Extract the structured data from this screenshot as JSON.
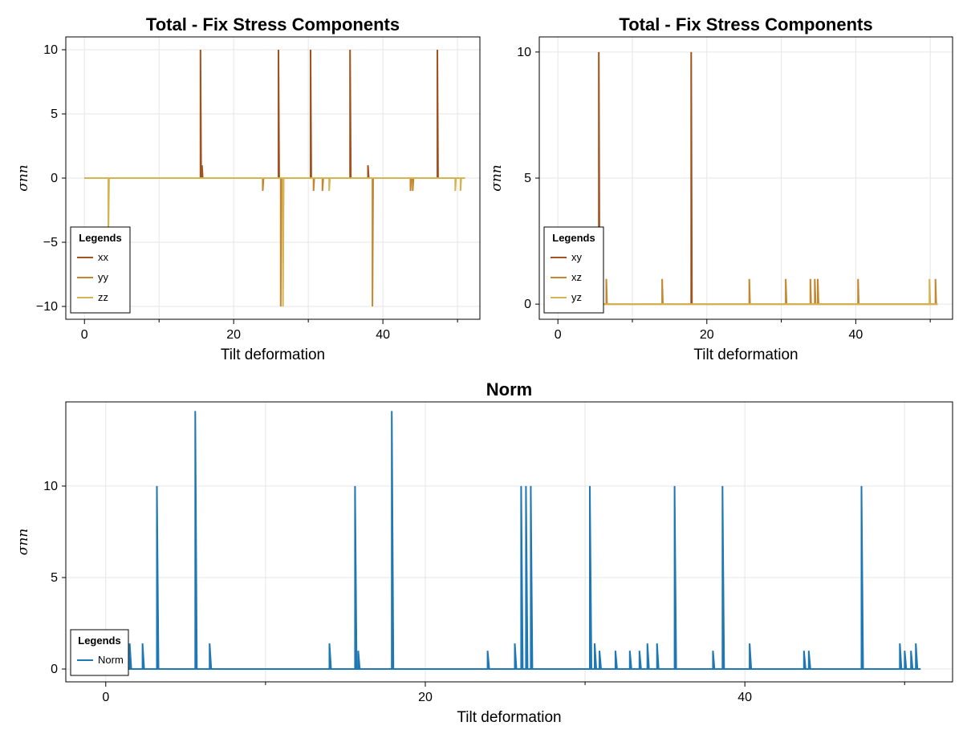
{
  "chart_data": [
    {
      "type": "line",
      "title": "Total - Fix Stress Components",
      "xlabel": "Tilt deformation",
      "ylabel": "σnn",
      "xlim": [
        -2.5,
        53
      ],
      "ylim": [
        -11,
        11
      ],
      "xticks": [
        0,
        20,
        40
      ],
      "xticklabels": [
        "0",
        "20",
        "40"
      ],
      "yticks": [
        -10,
        -5,
        0,
        5,
        10
      ],
      "yticklabels": [
        "−10",
        "−5",
        "0",
        "5",
        "10"
      ],
      "grid": true,
      "legend": {
        "title": "Legends",
        "position": "bottom-left",
        "entries": [
          "xx",
          "yy",
          "zz"
        ]
      },
      "series": [
        {
          "name": "xx",
          "color": "#a0531f",
          "x": [
            0,
            15.55,
            15.55,
            15.65,
            15.75,
            15.75,
            15.85,
            26,
            26,
            26.1,
            30.3,
            30.3,
            30.4,
            35.6,
            35.6,
            35.7,
            38.0,
            38.0,
            38.1,
            47.3,
            47.3,
            47.4,
            51
          ],
          "y": [
            0,
            0,
            10,
            0,
            0,
            1,
            0,
            0,
            10,
            0,
            0,
            10,
            0,
            0,
            10,
            0,
            0,
            1,
            0,
            0,
            10,
            0,
            0
          ]
        },
        {
          "name": "yy",
          "color": "#c4862e",
          "x": [
            0,
            23.9,
            23.9,
            24.0,
            26.3,
            26.3,
            26.4,
            30.7,
            30.7,
            30.8,
            31.9,
            31.9,
            32.0,
            38.6,
            38.6,
            38.7,
            43.7,
            43.7,
            43.8,
            44.0,
            44.0,
            44.1,
            51
          ],
          "y": [
            0,
            0,
            -1,
            0,
            0,
            -10,
            0,
            0,
            -1,
            0,
            0,
            -1,
            0,
            0,
            -10,
            0,
            0,
            -1,
            0,
            0,
            -1,
            0,
            0
          ]
        },
        {
          "name": "zz",
          "color": "#d4b451",
          "x": [
            0,
            3.2,
            3.2,
            3.3,
            26.6,
            26.6,
            26.7,
            32.8,
            32.8,
            32.9,
            49.7,
            49.7,
            49.8,
            50.4,
            50.4,
            50.5,
            51
          ],
          "y": [
            0,
            0,
            -4.6,
            0,
            0,
            -10,
            0,
            0,
            -1,
            0,
            0,
            -1,
            0,
            0,
            -1,
            0,
            0
          ]
        }
      ]
    },
    {
      "type": "line",
      "title": "Total - Fix Stress Components",
      "xlabel": "Tilt deformation",
      "ylabel": "σnn",
      "xlim": [
        -2.5,
        53
      ],
      "ylim": [
        -0.6,
        10.6
      ],
      "xticks": [
        0,
        20,
        40
      ],
      "xticklabels": [
        "0",
        "20",
        "40"
      ],
      "yticks": [
        0,
        5,
        10
      ],
      "yticklabels": [
        "0",
        "5",
        "10"
      ],
      "grid": true,
      "legend": {
        "title": "Legends",
        "position": "bottom-left",
        "entries": [
          "xy",
          "xz",
          "yz"
        ]
      },
      "series": [
        {
          "name": "xy",
          "color": "#a0531f",
          "x": [
            5.5,
            5.5,
            5.5,
            5.6,
            17.9,
            17.9,
            18.0,
            51
          ],
          "y": [
            0,
            0,
            10,
            0,
            0,
            10,
            0,
            0
          ]
        },
        {
          "name": "xz",
          "color": "#c4862e",
          "x": [
            5.6,
            6.5,
            6.5,
            6.6,
            14.0,
            14.0,
            14.1,
            25.7,
            25.7,
            25.8,
            30.6,
            30.6,
            30.7,
            33.9,
            33.9,
            34.0,
            34.5,
            34.5,
            34.6,
            34.9,
            34.9,
            35.0,
            40.3,
            40.3,
            40.4,
            50.7,
            50.7,
            50.8,
            51
          ],
          "y": [
            0,
            0,
            1,
            0,
            0,
            1,
            0,
            0,
            1,
            0,
            0,
            1,
            0,
            0,
            1,
            0,
            0,
            1,
            0,
            0,
            1,
            0,
            0,
            1,
            0,
            0,
            1,
            0,
            0
          ]
        },
        {
          "name": "yz",
          "color": "#d4b451",
          "x": [
            5.6,
            49.9,
            49.9,
            50.0,
            51
          ],
          "y": [
            0,
            0,
            1,
            0,
            0
          ]
        }
      ]
    },
    {
      "type": "line",
      "title": "Norm",
      "xlabel": "Tilt deformation",
      "ylabel": "σnn",
      "xlim": [
        -2.5,
        53
      ],
      "ylim": [
        -0.7,
        14.6
      ],
      "xticks": [
        0,
        20,
        40
      ],
      "xticklabels": [
        "0",
        "20",
        "40"
      ],
      "yticks": [
        0,
        5,
        10
      ],
      "yticklabels": [
        "0",
        "5",
        "10"
      ],
      "grid": true,
      "legend": {
        "title": "Legends",
        "position": "bottom-left",
        "entries": [
          "Norm"
        ]
      },
      "series": [
        {
          "name": "Norm",
          "color": "#1f77b4",
          "x": [
            0,
            1.5,
            1.5,
            1.6,
            2.3,
            2.3,
            2.4,
            3.2,
            3.2,
            3.3,
            5.6,
            5.6,
            5.7,
            6.5,
            6.5,
            6.6,
            14.0,
            14.0,
            14.1,
            15.6,
            15.6,
            15.7,
            15.8,
            15.8,
            15.9,
            17.9,
            17.9,
            18.0,
            23.9,
            23.9,
            24.0,
            25.6,
            25.6,
            25.7,
            26.0,
            26.0,
            26.1,
            26.3,
            26.3,
            26.4,
            26.6,
            26.6,
            26.7,
            30.3,
            30.3,
            30.4,
            30.6,
            30.6,
            30.7,
            30.9,
            30.9,
            31.0,
            31.9,
            31.9,
            32.0,
            32.8,
            32.8,
            32.9,
            33.4,
            33.4,
            33.5,
            33.9,
            33.9,
            34.0,
            34.5,
            34.5,
            34.6,
            35.6,
            35.6,
            35.7,
            38.0,
            38.0,
            38.1,
            38.6,
            38.6,
            38.7,
            40.3,
            40.3,
            40.4,
            43.7,
            43.7,
            43.8,
            44.0,
            44.0,
            44.1,
            47.3,
            47.3,
            47.4,
            49.7,
            49.7,
            49.8,
            50.0,
            50.0,
            50.1,
            50.4,
            50.4,
            50.5,
            50.7,
            50.7,
            50.8,
            51
          ],
          "y": [
            0,
            0,
            1.4,
            0,
            0,
            1.4,
            0,
            0,
            10,
            0,
            0,
            14.1,
            0,
            0,
            1.4,
            0,
            0,
            1.4,
            0,
            0,
            10,
            0,
            0,
            1,
            0,
            0,
            14.1,
            0,
            0,
            1,
            0,
            0,
            1.4,
            0,
            0,
            10,
            0,
            0,
            10,
            0,
            0,
            10,
            0,
            0,
            10,
            0,
            0,
            1.4,
            0,
            0,
            1,
            0,
            0,
            1,
            0,
            0,
            1,
            0,
            0,
            1,
            0,
            0,
            1.4,
            0,
            0,
            1.4,
            0,
            0,
            10,
            0,
            0,
            1,
            0,
            0,
            10,
            0,
            0,
            1.4,
            0,
            0,
            1,
            0,
            0,
            1,
            0,
            0,
            10,
            0,
            0,
            1.4,
            0,
            0,
            1,
            0,
            0,
            1,
            0,
            0,
            1.4,
            0,
            0
          ]
        }
      ]
    }
  ]
}
